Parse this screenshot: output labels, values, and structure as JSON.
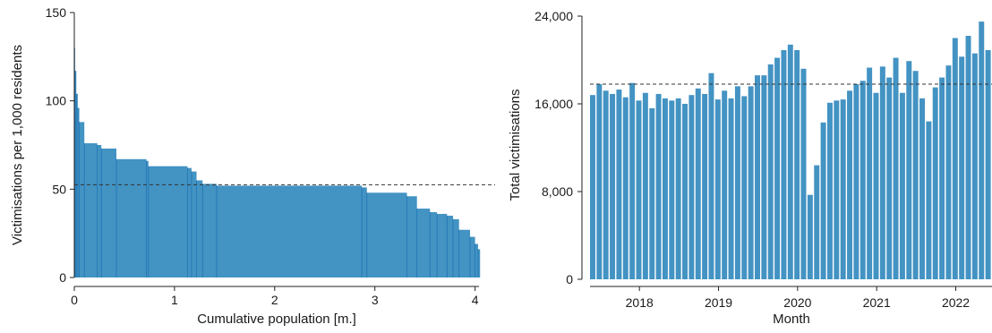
{
  "colors": {
    "bar": "#4393c3",
    "bar_edge": "#1f74b4",
    "reference_line": "#333333",
    "axis": "#222222"
  },
  "chart_data": [
    {
      "type": "area",
      "panel": "left",
      "xlabel": "Cumulative population [m.]",
      "ylabel": "Victimisations per 1,000 residents",
      "xlim": [
        0,
        4.2
      ],
      "ylim": [
        0,
        150
      ],
      "xticks": [
        0,
        1,
        2,
        3,
        4
      ],
      "xtick_labels": [
        "0",
        "1",
        "2",
        "3",
        "4"
      ],
      "yticks": [
        0,
        50,
        100,
        150
      ],
      "ytick_labels": [
        "0",
        "50",
        "100",
        "150"
      ],
      "reference_line": 52.5,
      "grid": false,
      "steps": [
        {
          "x": 0.0,
          "y": 130
        },
        {
          "x": 0.008,
          "y": 117
        },
        {
          "x": 0.02,
          "y": 104
        },
        {
          "x": 0.035,
          "y": 96
        },
        {
          "x": 0.05,
          "y": 88
        },
        {
          "x": 0.1,
          "y": 76
        },
        {
          "x": 0.23,
          "y": 75
        },
        {
          "x": 0.27,
          "y": 73
        },
        {
          "x": 0.42,
          "y": 67
        },
        {
          "x": 0.72,
          "y": 66
        },
        {
          "x": 0.74,
          "y": 63
        },
        {
          "x": 1.13,
          "y": 62
        },
        {
          "x": 1.17,
          "y": 60
        },
        {
          "x": 1.22,
          "y": 55
        },
        {
          "x": 1.28,
          "y": 53
        },
        {
          "x": 1.42,
          "y": 52
        },
        {
          "x": 2.87,
          "y": 51
        },
        {
          "x": 2.92,
          "y": 48
        },
        {
          "x": 3.32,
          "y": 46
        },
        {
          "x": 3.42,
          "y": 39
        },
        {
          "x": 3.55,
          "y": 37
        },
        {
          "x": 3.62,
          "y": 36
        },
        {
          "x": 3.72,
          "y": 35
        },
        {
          "x": 3.78,
          "y": 33
        },
        {
          "x": 3.84,
          "y": 27
        },
        {
          "x": 3.95,
          "y": 23
        },
        {
          "x": 4.0,
          "y": 19
        },
        {
          "x": 4.03,
          "y": 16
        },
        {
          "x": 4.05,
          "y": 0
        }
      ]
    },
    {
      "type": "bar",
      "panel": "right",
      "xlabel": "Month",
      "ylabel": "Total victimisations",
      "xlim": [
        "2017-06",
        "2022-06"
      ],
      "ylim": [
        0,
        24000
      ],
      "yticks": [
        0,
        8000,
        16000,
        24000
      ],
      "ytick_labels": [
        "0",
        "8,000",
        "16,000",
        "24,000"
      ],
      "xticks": [
        "2018-01",
        "2019-01",
        "2020-01",
        "2021-01",
        "2022-01"
      ],
      "xtick_labels": [
        "2018",
        "2019",
        "2020",
        "2021",
        "2022"
      ],
      "reference_line": 17800,
      "grid": false,
      "categories": [
        "2017-06",
        "2017-07",
        "2017-08",
        "2017-09",
        "2017-10",
        "2017-11",
        "2017-12",
        "2018-01",
        "2018-02",
        "2018-03",
        "2018-04",
        "2018-05",
        "2018-06",
        "2018-07",
        "2018-08",
        "2018-09",
        "2018-10",
        "2018-11",
        "2018-12",
        "2019-01",
        "2019-02",
        "2019-03",
        "2019-04",
        "2019-05",
        "2019-06",
        "2019-07",
        "2019-08",
        "2019-09",
        "2019-10",
        "2019-11",
        "2019-12",
        "2020-01",
        "2020-02",
        "2020-03",
        "2020-04",
        "2020-05",
        "2020-06",
        "2020-07",
        "2020-08",
        "2020-09",
        "2020-10",
        "2020-11",
        "2020-12",
        "2021-01",
        "2021-02",
        "2021-03",
        "2021-04",
        "2021-05",
        "2021-06",
        "2021-07",
        "2021-08",
        "2021-09",
        "2021-10",
        "2021-11",
        "2021-12",
        "2022-01",
        "2022-02",
        "2022-03",
        "2022-04",
        "2022-05",
        "2022-06"
      ],
      "values": [
        16800,
        17800,
        17200,
        16900,
        17300,
        16600,
        17900,
        16300,
        17000,
        15600,
        16900,
        16500,
        16300,
        16500,
        16000,
        16800,
        17400,
        16900,
        18800,
        16400,
        17200,
        16500,
        17600,
        16700,
        17600,
        18600,
        18600,
        19600,
        20200,
        20900,
        21400,
        20900,
        19200,
        7700,
        10400,
        14300,
        16100,
        16300,
        16400,
        17200,
        17800,
        18100,
        19300,
        17000,
        19400,
        18400,
        20200,
        17000,
        19900,
        19000,
        16500,
        14400,
        17500,
        18400,
        19500,
        22000,
        20300,
        22200,
        20600,
        23500,
        20900
      ]
    }
  ]
}
